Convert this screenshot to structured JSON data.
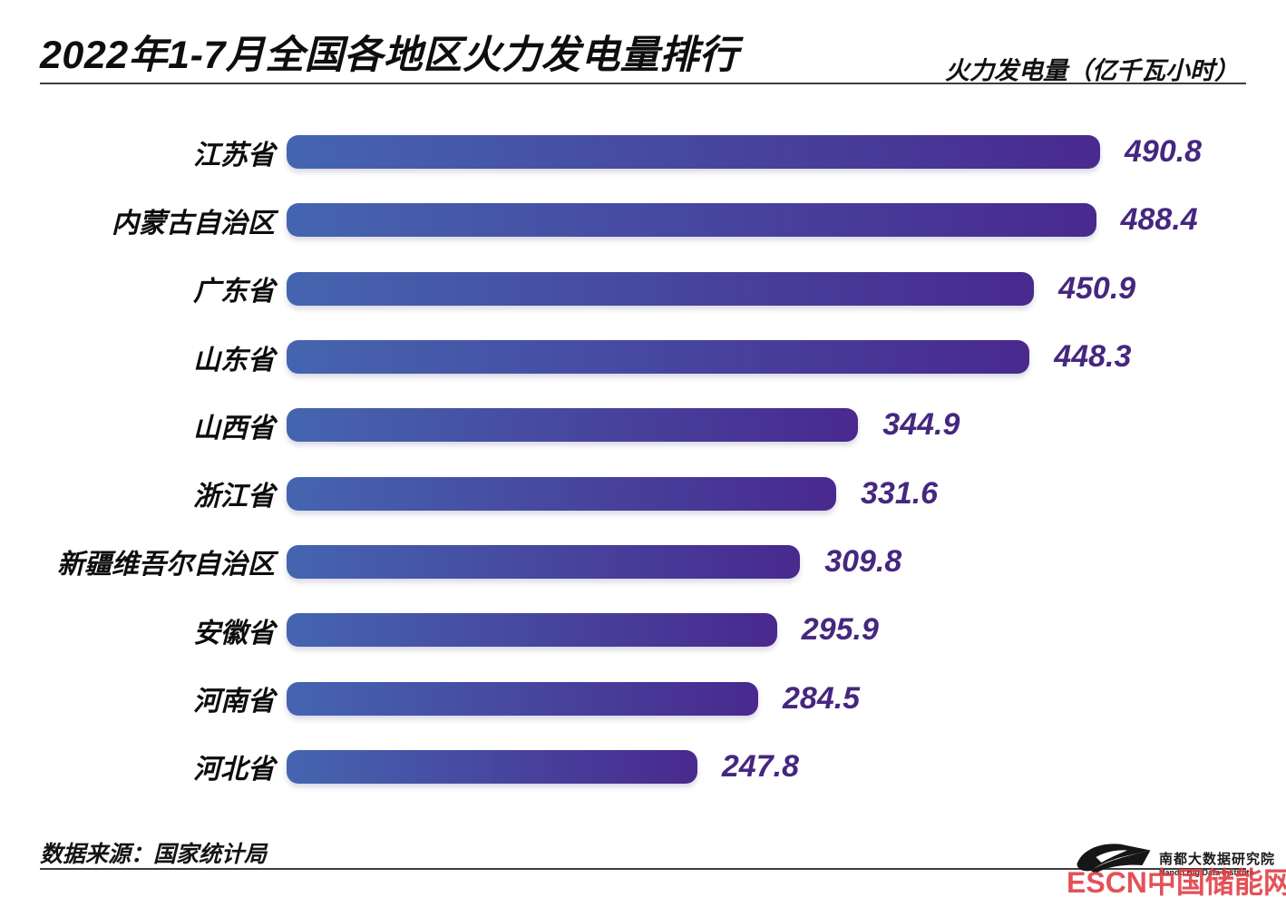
{
  "header": {
    "title": "2022年1-7月全国各地区火力发电量排行",
    "unit_label": "火力发电量（亿千瓦小时）"
  },
  "footer": {
    "source": "数据来源：国家统计局",
    "logo_cn": "南都大数据研究院",
    "logo_en": "Nandu Big Data Institute",
    "watermark": "ESCN中国储能网"
  },
  "colors": {
    "bar_gradient_start": "#4565b0",
    "bar_gradient_end": "#49298e",
    "value_text": "#46277f",
    "watermark_red": "#e13a42",
    "divider": "#3d3d3d"
  },
  "chart_data": {
    "type": "bar",
    "orientation": "horizontal",
    "title": "2022年1-7月全国各地区火力发电量排行",
    "xlabel": "火力发电量（亿千瓦小时）",
    "categories": [
      "江苏省",
      "内蒙古自治区",
      "广东省",
      "山东省",
      "山西省",
      "浙江省",
      "新疆维吾尔自治区",
      "安徽省",
      "河南省",
      "河北省"
    ],
    "values": [
      490.8,
      488.4,
      450.9,
      448.3,
      344.9,
      331.6,
      309.8,
      295.9,
      284.5,
      247.8
    ],
    "xlim": [
      0,
      490.8
    ],
    "grid": false,
    "value_labels": "end-of-bar"
  }
}
